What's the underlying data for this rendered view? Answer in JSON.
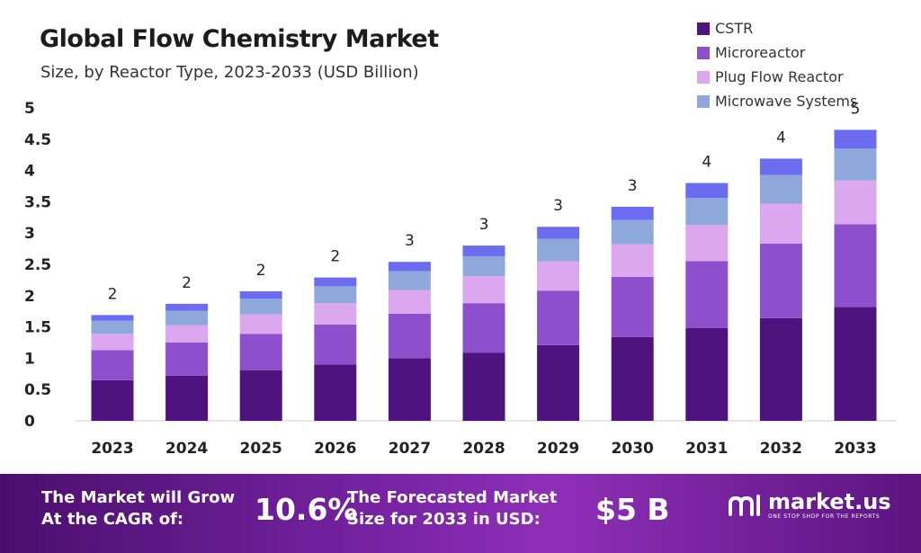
{
  "title": "Global Flow Chemistry Market",
  "subtitle": "Size, by Reactor Type, 2023-2033 (USD Billion)",
  "footer": {
    "cagr_label_line1": "The Market will Grow",
    "cagr_label_line2": "At the CAGR of:",
    "cagr_value": "10.6%",
    "forecast_label_line1": "The Forecasted Market",
    "forecast_label_line2": "Size for 2033 in USD:",
    "forecast_value": "$5 B",
    "brand_name": "market.us",
    "brand_tagline": "ONE STOP SHOP FOR THE REPORTS"
  },
  "colors": {
    "cstr": "#4f1380",
    "microreactor": "#8e4fcc",
    "plug_flow_reactor": "#dba8ef",
    "microwave_systems": "#8fa8dc",
    "top_segment": "#6c6cf0"
  },
  "chart_data": {
    "type": "bar",
    "stacked": true,
    "categories": [
      "2023",
      "2024",
      "2025",
      "2026",
      "2027",
      "2028",
      "2029",
      "2030",
      "2031",
      "2032",
      "2033"
    ],
    "series": [
      {
        "name": "CSTR",
        "color": "#4f1380",
        "values": [
          0.65,
          0.72,
          0.81,
          0.9,
          1.0,
          1.09,
          1.21,
          1.34,
          1.48,
          1.64,
          1.82
        ]
      },
      {
        "name": "Microreactor",
        "color": "#8e4fcc",
        "values": [
          0.48,
          0.53,
          0.58,
          0.64,
          0.71,
          0.79,
          0.87,
          0.96,
          1.07,
          1.19,
          1.32
        ]
      },
      {
        "name": "Plug Flow Reactor",
        "color": "#dba8ef",
        "values": [
          0.26,
          0.28,
          0.31,
          0.34,
          0.38,
          0.43,
          0.47,
          0.52,
          0.58,
          0.64,
          0.7
        ]
      },
      {
        "name": "Microwave Systems",
        "color": "#8fa8dc",
        "values": [
          0.21,
          0.23,
          0.25,
          0.27,
          0.3,
          0.32,
          0.36,
          0.39,
          0.43,
          0.46,
          0.51
        ]
      },
      {
        "name": "",
        "color": "#6c6cf0",
        "values": [
          0.09,
          0.11,
          0.12,
          0.14,
          0.15,
          0.17,
          0.19,
          0.21,
          0.24,
          0.26,
          0.3
        ]
      }
    ],
    "totals_labels": [
      "2",
      "2",
      "2",
      "2",
      "3",
      "3",
      "3",
      "3",
      "4",
      "4",
      "5"
    ],
    "y_ticks": [
      "0",
      "0.5",
      "1",
      "1.5",
      "2",
      "2.5",
      "3",
      "3.5",
      "4",
      "4.5",
      "5"
    ],
    "ylim": [
      0,
      5
    ],
    "grid": false,
    "legend_position": "top-right"
  }
}
